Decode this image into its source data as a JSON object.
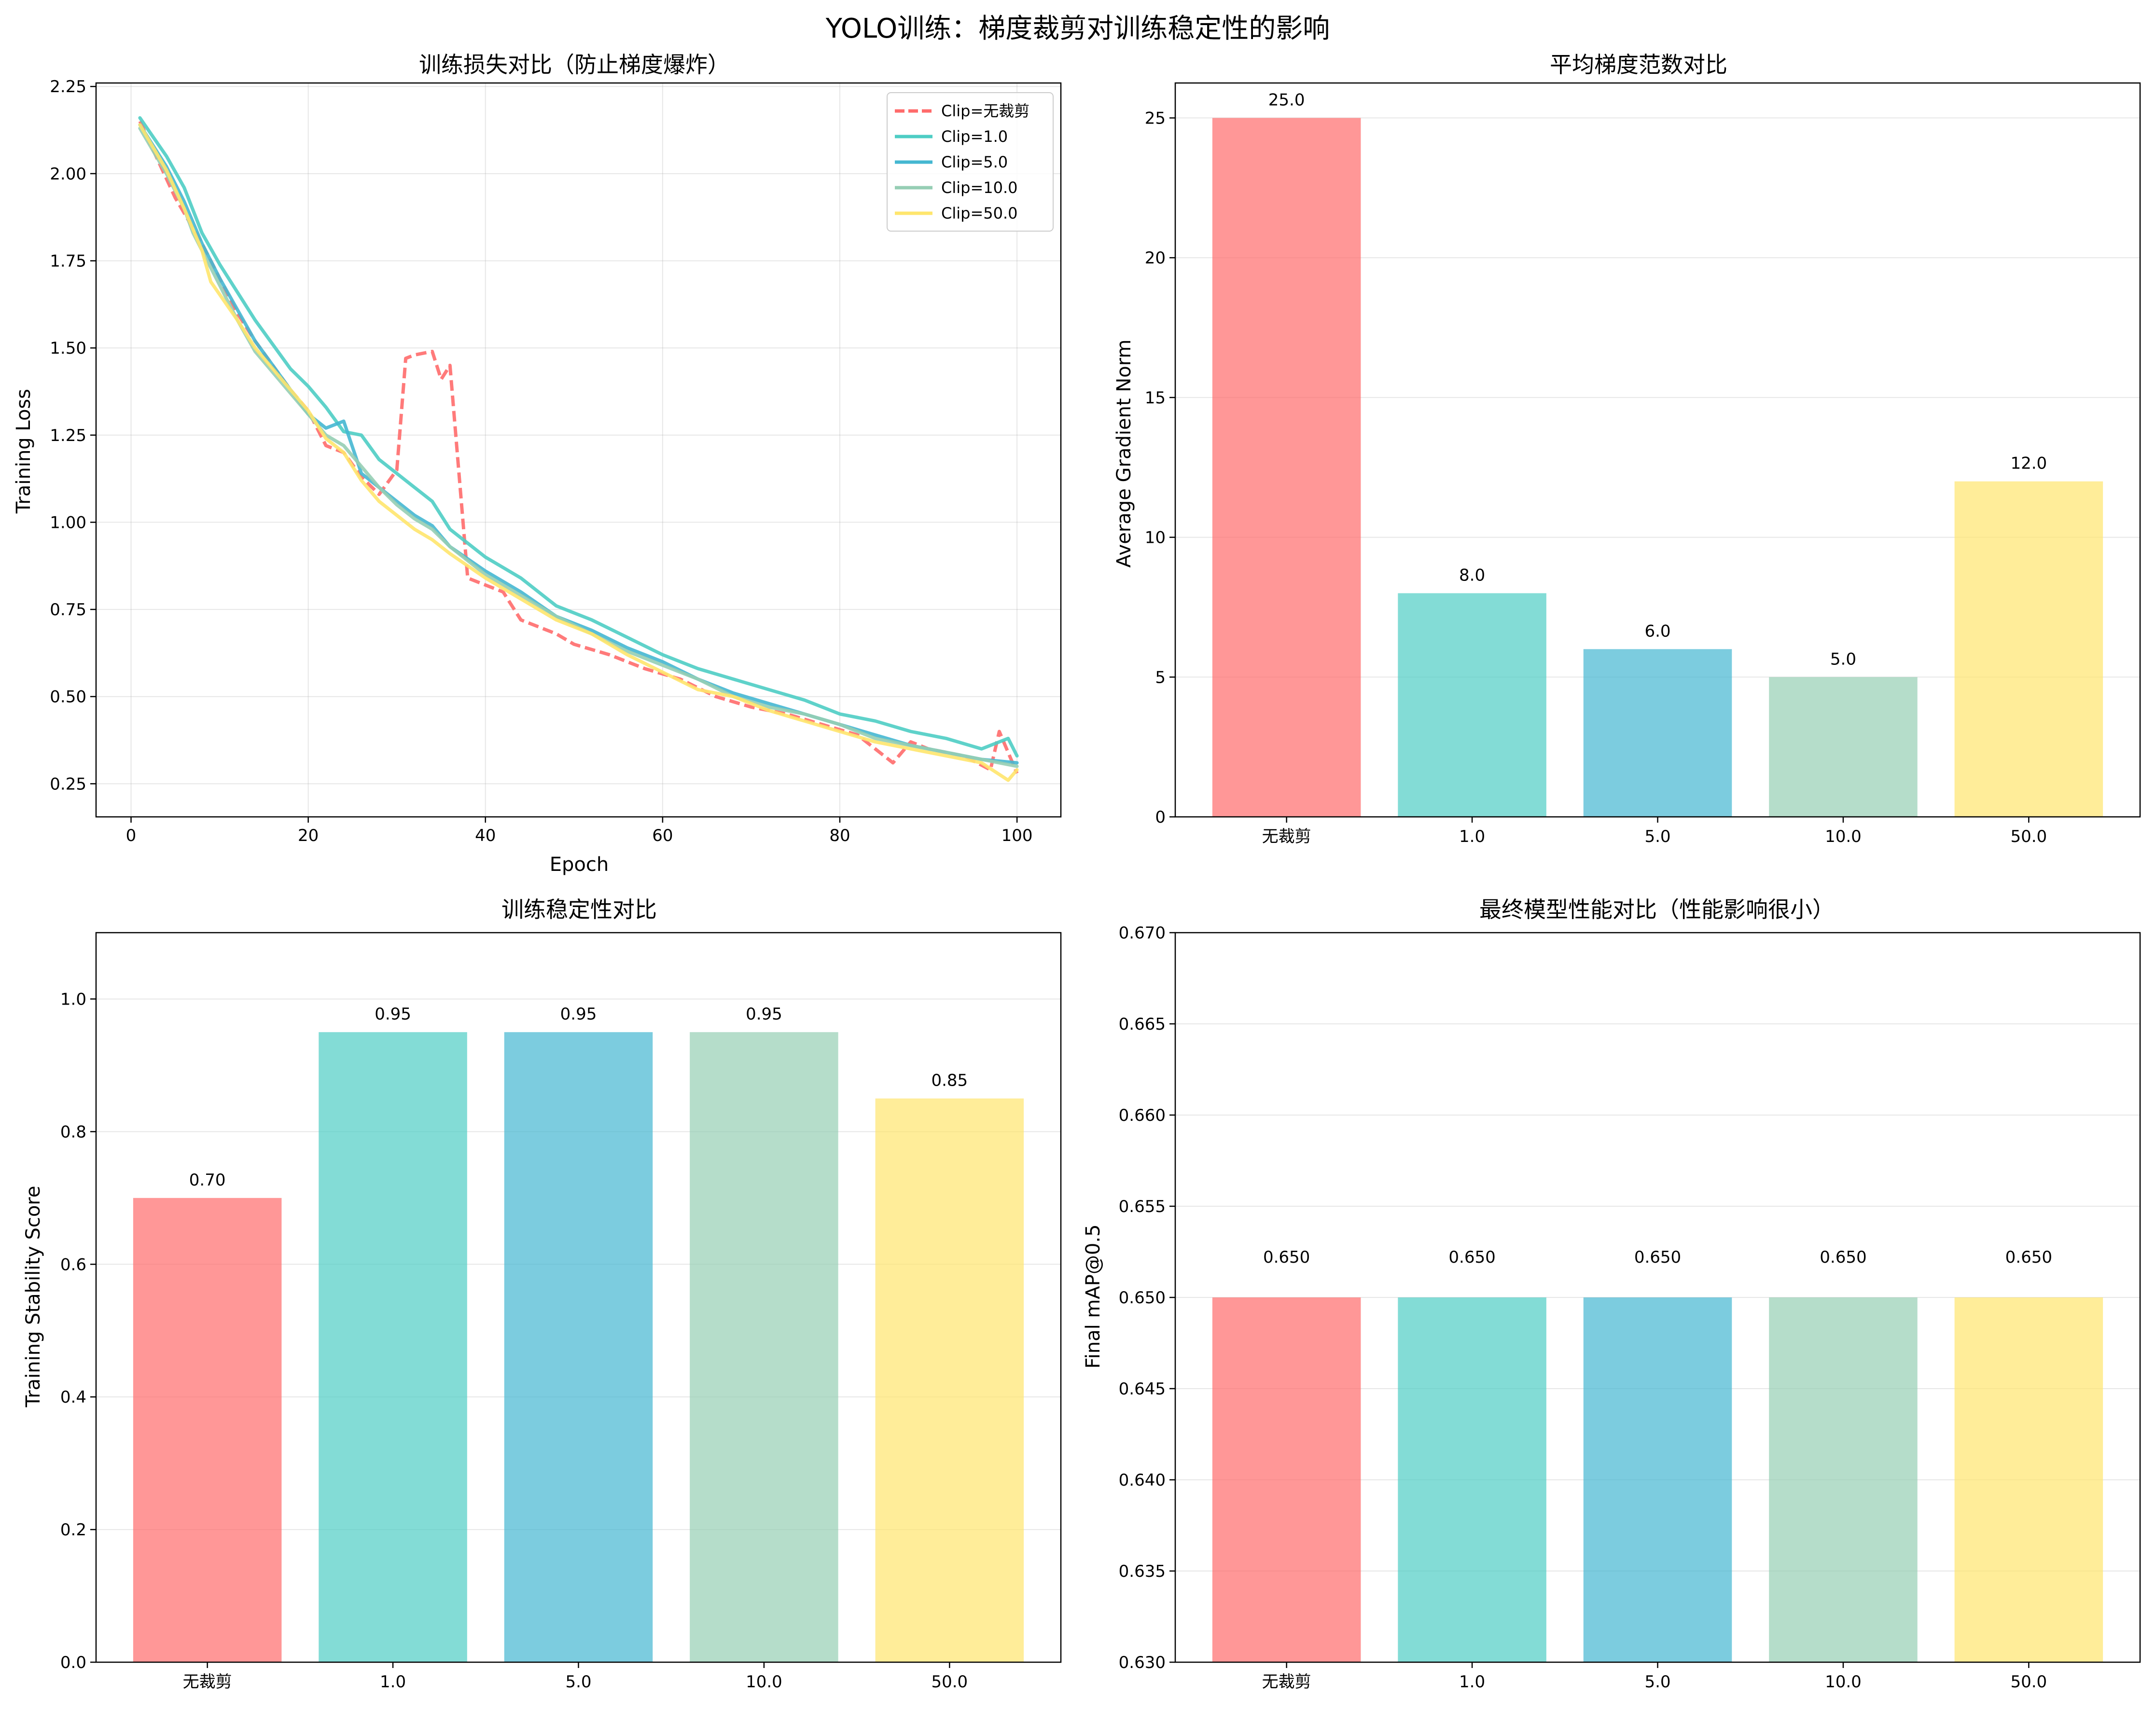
{
  "figure": {
    "title": "YOLO训练：梯度裁剪对训练稳定性的影响"
  },
  "chart_data": [
    {
      "type": "line",
      "title": "训练损失对比（防止梯度爆炸）",
      "xlabel": "Epoch",
      "ylabel": "Training Loss",
      "xlim": [
        -3.95,
        104.95
      ],
      "ylim": [
        0.155,
        2.26
      ],
      "xticks": [
        "0",
        "20",
        "40",
        "60",
        "80",
        "100"
      ],
      "yticks": [
        "0.25",
        "0.50",
        "0.75",
        "1.00",
        "1.25",
        "1.50",
        "1.75",
        "2.00",
        "2.25"
      ],
      "grid": true,
      "legend": "top-right",
      "series": [
        {
          "name": "Clip=无裁剪",
          "color": "#FF6B6B",
          "dashed": true,
          "x": [
            1,
            3,
            5,
            8,
            10,
            12,
            14,
            16,
            18,
            20,
            22,
            24,
            26,
            28,
            30,
            31,
            32,
            34,
            35,
            36,
            38,
            40,
            42,
            44,
            46,
            48,
            50,
            54,
            58,
            62,
            66,
            70,
            74,
            78,
            82,
            86,
            88,
            90,
            94,
            97,
            98,
            100
          ],
          "y": [
            2.15,
            2.04,
            1.93,
            1.8,
            1.7,
            1.6,
            1.52,
            1.45,
            1.38,
            1.32,
            1.22,
            1.2,
            1.13,
            1.08,
            1.15,
            1.47,
            1.48,
            1.49,
            1.41,
            1.45,
            0.84,
            0.82,
            0.8,
            0.72,
            0.7,
            0.68,
            0.65,
            0.62,
            0.58,
            0.55,
            0.5,
            0.47,
            0.45,
            0.42,
            0.39,
            0.31,
            0.37,
            0.35,
            0.33,
            0.29,
            0.4,
            0.28
          ]
        },
        {
          "name": "Clip=1.0",
          "color": "#4ECDC4",
          "dashed": false,
          "x": [
            1,
            4,
            6,
            8,
            10,
            12,
            14,
            16,
            18,
            20,
            22,
            24,
            26,
            28,
            30,
            32,
            34,
            36,
            38,
            40,
            44,
            48,
            52,
            56,
            60,
            64,
            68,
            72,
            76,
            80,
            84,
            88,
            92,
            96,
            99,
            100
          ],
          "y": [
            2.16,
            2.05,
            1.96,
            1.83,
            1.74,
            1.66,
            1.58,
            1.51,
            1.44,
            1.39,
            1.33,
            1.26,
            1.25,
            1.18,
            1.14,
            1.1,
            1.06,
            0.98,
            0.94,
            0.9,
            0.84,
            0.76,
            0.72,
            0.67,
            0.62,
            0.58,
            0.55,
            0.52,
            0.49,
            0.45,
            0.43,
            0.4,
            0.38,
            0.35,
            0.38,
            0.33
          ]
        },
        {
          "name": "Clip=5.0",
          "color": "#45B7D1",
          "dashed": false,
          "x": [
            1,
            4,
            6,
            8,
            10,
            12,
            14,
            16,
            18,
            20,
            22,
            24,
            26,
            28,
            30,
            32,
            34,
            36,
            40,
            44,
            48,
            52,
            56,
            60,
            64,
            68,
            72,
            76,
            80,
            84,
            88,
            92,
            96,
            100
          ],
          "y": [
            2.14,
            2.02,
            1.92,
            1.8,
            1.7,
            1.61,
            1.52,
            1.45,
            1.38,
            1.31,
            1.27,
            1.29,
            1.14,
            1.1,
            1.06,
            1.02,
            0.99,
            0.93,
            0.86,
            0.8,
            0.73,
            0.69,
            0.64,
            0.6,
            0.55,
            0.51,
            0.48,
            0.45,
            0.42,
            0.39,
            0.36,
            0.34,
            0.32,
            0.31
          ]
        },
        {
          "name": "Clip=10.0",
          "color": "#96CEB4",
          "dashed": false,
          "x": [
            1,
            4,
            6,
            7,
            10,
            12,
            14,
            16,
            18,
            20,
            22,
            24,
            26,
            28,
            30,
            32,
            34,
            36,
            40,
            44,
            48,
            52,
            56,
            60,
            64,
            68,
            72,
            76,
            80,
            84,
            88,
            92,
            96,
            100
          ],
          "y": [
            2.13,
            2.0,
            1.9,
            1.83,
            1.68,
            1.58,
            1.49,
            1.43,
            1.37,
            1.31,
            1.25,
            1.22,
            1.16,
            1.1,
            1.05,
            1.01,
            0.98,
            0.93,
            0.85,
            0.79,
            0.73,
            0.68,
            0.63,
            0.59,
            0.55,
            0.5,
            0.47,
            0.45,
            0.42,
            0.38,
            0.36,
            0.34,
            0.32,
            0.3
          ]
        },
        {
          "name": "Clip=50.0",
          "color": "#FFE66D",
          "dashed": false,
          "x": [
            1,
            4,
            6,
            8,
            9,
            12,
            14,
            16,
            18,
            20,
            22,
            24,
            26,
            28,
            30,
            32,
            34,
            36,
            40,
            44,
            48,
            52,
            56,
            60,
            64,
            68,
            72,
            76,
            80,
            84,
            88,
            92,
            96,
            99,
            100
          ],
          "y": [
            2.14,
            2.01,
            1.9,
            1.78,
            1.69,
            1.58,
            1.5,
            1.44,
            1.38,
            1.32,
            1.24,
            1.2,
            1.12,
            1.06,
            1.02,
            0.98,
            0.95,
            0.91,
            0.84,
            0.78,
            0.72,
            0.68,
            0.62,
            0.57,
            0.52,
            0.5,
            0.46,
            0.43,
            0.4,
            0.37,
            0.35,
            0.33,
            0.31,
            0.26,
            0.29
          ]
        }
      ]
    },
    {
      "type": "bar",
      "title": "平均梯度范数对比",
      "ylabel": "Average Gradient Norm",
      "categories": [
        "无裁剪",
        "1.0",
        "5.0",
        "10.0",
        "50.0"
      ],
      "values": [
        25.0,
        8.0,
        6.0,
        5.0,
        12.0
      ],
      "value_labels": [
        "25.0",
        "8.0",
        "6.0",
        "5.0",
        "12.0"
      ],
      "colors": [
        "#FF6B6B",
        "#4ECDC4",
        "#45B7D1",
        "#96CEB4",
        "#FFE66D"
      ],
      "ylim": [
        0,
        26.25
      ],
      "yticks": [
        0,
        5,
        10,
        15,
        20,
        25
      ],
      "ytick_labels": [
        "0",
        "5",
        "10",
        "15",
        "20",
        "25"
      ],
      "grid": true
    },
    {
      "type": "bar",
      "title": "训练稳定性对比",
      "ylabel": "Training Stability Score",
      "categories": [
        "无裁剪",
        "1.0",
        "5.0",
        "10.0",
        "50.0"
      ],
      "values": [
        0.7,
        0.95,
        0.95,
        0.95,
        0.85
      ],
      "value_labels": [
        "0.70",
        "0.95",
        "0.95",
        "0.95",
        "0.85"
      ],
      "colors": [
        "#FF6B6B",
        "#4ECDC4",
        "#45B7D1",
        "#96CEB4",
        "#FFE66D"
      ],
      "ylim": [
        0,
        1.1
      ],
      "yticks": [
        0,
        0.2,
        0.4,
        0.6,
        0.8,
        1.0
      ],
      "ytick_labels": [
        "0.0",
        "0.2",
        "0.4",
        "0.6",
        "0.8",
        "1.0"
      ],
      "grid": true
    },
    {
      "type": "bar",
      "title": "最终模型性能对比（性能影响很小）",
      "ylabel": "Final mAP@0.5",
      "categories": [
        "无裁剪",
        "1.0",
        "5.0",
        "10.0",
        "50.0"
      ],
      "values": [
        0.65,
        0.65,
        0.65,
        0.65,
        0.65
      ],
      "value_labels": [
        "0.650",
        "0.650",
        "0.650",
        "0.650",
        "0.650"
      ],
      "colors": [
        "#FF6B6B",
        "#4ECDC4",
        "#45B7D1",
        "#96CEB4",
        "#FFE66D"
      ],
      "ylim": [
        0.63,
        0.67
      ],
      "yticks": [
        0.63,
        0.635,
        0.64,
        0.645,
        0.65,
        0.655,
        0.66,
        0.665,
        0.67
      ],
      "ytick_labels": [
        "0.630",
        "0.635",
        "0.640",
        "0.645",
        "0.650",
        "0.655",
        "0.660",
        "0.665",
        "0.670"
      ],
      "grid": true
    }
  ]
}
